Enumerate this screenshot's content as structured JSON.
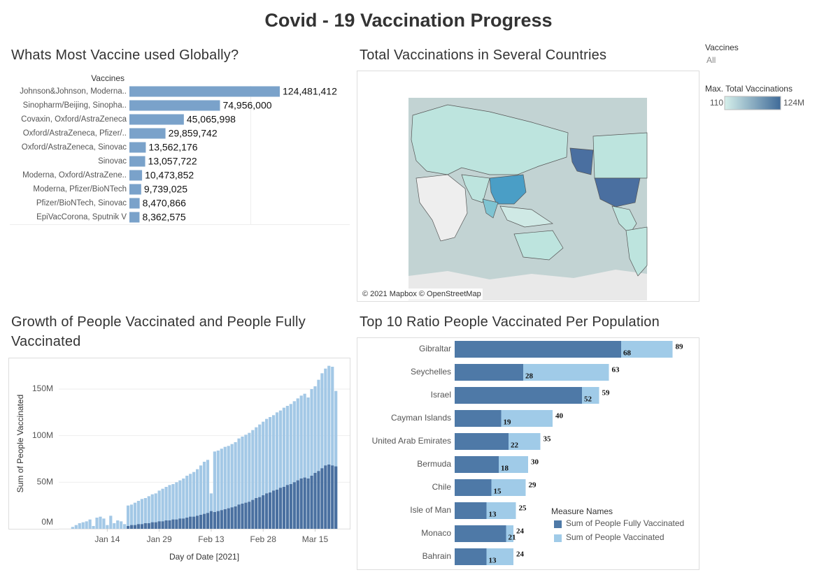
{
  "title": "Covid - 19 Vaccination Progress",
  "filter": {
    "label": "Vaccines",
    "value": "All"
  },
  "chart_data": [
    {
      "type": "barh",
      "title": "Whats Most Vaccine used Globally?",
      "axis_header": "Vaccines",
      "color": "#7aa2ca",
      "categories": [
        "Johnson&Johnson, Moderna..",
        "Sinopharm/Beijing, Sinopha..",
        "Covaxin, Oxford/AstraZeneca",
        "Oxford/AstraZeneca, Pfizer/..",
        "Oxford/AstraZeneca, Sinovac",
        "Sinovac",
        "Moderna, Oxford/AstraZene..",
        "Moderna, Pfizer/BioNTech",
        "Pfizer/BioNTech, Sinovac",
        "EpiVacCorona, Sputnik V"
      ],
      "values": [
        124481412,
        74956000,
        45065998,
        29859742,
        13562176,
        13057722,
        10473852,
        9739025,
        8470866,
        8362575
      ],
      "value_labels": [
        "124,481,412",
        "74,956,000",
        "45,065,998",
        "29,859,742",
        "13,562,176",
        "13,057,722",
        "10,473,852",
        "9,739,025",
        "8,470,866",
        "8,362,575"
      ]
    },
    {
      "type": "map",
      "title": "Total Vaccinations in Several Countries",
      "attribution": "© 2021 Mapbox © OpenStreetMap",
      "legend": {
        "title": "Max. Total Vaccinations",
        "min": 110,
        "max": {
          "value": 124000000,
          "label": "124M"
        },
        "colors": [
          "#d6f0eb",
          "#3f6a98"
        ]
      }
    },
    {
      "type": "bar",
      "title": "Growth of People Vaccinated and People Fully Vaccinated",
      "ylabel": "Sum of People Vaccinated",
      "xlabel": "Day of Date [2021]",
      "x": [
        "2021-01-04",
        "2021-01-05",
        "2021-01-06",
        "2021-01-07",
        "2021-01-08",
        "2021-01-09",
        "2021-01-10",
        "2021-01-11",
        "2021-01-12",
        "2021-01-13",
        "2021-01-14",
        "2021-01-15",
        "2021-01-16",
        "2021-01-17",
        "2021-01-18",
        "2021-01-19",
        "2021-01-20",
        "2021-01-21",
        "2021-01-22",
        "2021-01-23",
        "2021-01-24",
        "2021-01-25",
        "2021-01-26",
        "2021-01-27",
        "2021-01-28",
        "2021-01-29",
        "2021-01-30",
        "2021-01-31",
        "2021-02-01",
        "2021-02-02",
        "2021-02-03",
        "2021-02-04",
        "2021-02-05",
        "2021-02-06",
        "2021-02-07",
        "2021-02-08",
        "2021-02-09",
        "2021-02-10",
        "2021-02-11",
        "2021-02-12",
        "2021-02-13",
        "2021-02-14",
        "2021-02-15",
        "2021-02-16",
        "2021-02-17",
        "2021-02-18",
        "2021-02-19",
        "2021-02-20",
        "2021-02-21",
        "2021-02-22",
        "2021-02-23",
        "2021-02-24",
        "2021-02-25",
        "2021-02-26",
        "2021-02-27",
        "2021-02-28",
        "2021-03-01",
        "2021-03-02",
        "2021-03-03",
        "2021-03-04",
        "2021-03-05",
        "2021-03-06",
        "2021-03-07",
        "2021-03-08",
        "2021-03-09",
        "2021-03-10",
        "2021-03-11",
        "2021-03-12",
        "2021-03-13",
        "2021-03-14",
        "2021-03-15",
        "2021-03-16",
        "2021-03-17",
        "2021-03-18",
        "2021-03-19",
        "2021-03-20",
        "2021-03-21"
      ],
      "xlim": [
        "2021-01-01",
        "2021-03-25"
      ],
      "xticks": [
        {
          "value": "2021-01-14",
          "label": "Jan 14"
        },
        {
          "value": "2021-01-29",
          "label": "Jan 29"
        },
        {
          "value": "2021-02-13",
          "label": "Feb 13"
        },
        {
          "value": "2021-02-28",
          "label": "Feb 28"
        },
        {
          "value": "2021-03-15",
          "label": "Mar 15"
        }
      ],
      "ylim": [
        0,
        183000000
      ],
      "yticks": [
        {
          "value": 0,
          "label": "0M"
        },
        {
          "value": 50000000,
          "label": "50M"
        },
        {
          "value": 100000000,
          "label": "100M"
        },
        {
          "value": 150000000,
          "label": "150M"
        }
      ],
      "grid": true,
      "series": [
        {
          "color": "#a3c8e6",
          "values": [
            2000000,
            4000000,
            6000000,
            7000000,
            8000000,
            10000000,
            3000000,
            12000000,
            13000000,
            11000000,
            4000000,
            14000000,
            6000000,
            9000000,
            8000000,
            5000000,
            25000000,
            26000000,
            28000000,
            30000000,
            32000000,
            33000000,
            35000000,
            37000000,
            38000000,
            41000000,
            43000000,
            45000000,
            47000000,
            48000000,
            50000000,
            52000000,
            54000000,
            57000000,
            59000000,
            61000000,
            64000000,
            68000000,
            72000000,
            74000000,
            38000000,
            83000000,
            84000000,
            86000000,
            88000000,
            89000000,
            91000000,
            93000000,
            97000000,
            99000000,
            101000000,
            103000000,
            106000000,
            109000000,
            112000000,
            115000000,
            118000000,
            120000000,
            122000000,
            125000000,
            127000000,
            130000000,
            132000000,
            134000000,
            137000000,
            140000000,
            143000000,
            145000000,
            141000000,
            150000000,
            153000000,
            160000000,
            167000000,
            172000000,
            175000000,
            174000000,
            148000000
          ]
        },
        {
          "color": "#4a70a0",
          "values": [
            0,
            0,
            0,
            0,
            0,
            0,
            0,
            0,
            0,
            0,
            0,
            0,
            0,
            0,
            0,
            0,
            3000000,
            4000000,
            4000000,
            5000000,
            5000000,
            6000000,
            6000000,
            7000000,
            7000000,
            8000000,
            8000000,
            9000000,
            9000000,
            10000000,
            10000000,
            11000000,
            11000000,
            12000000,
            13000000,
            13000000,
            14000000,
            15000000,
            16000000,
            17000000,
            19000000,
            18000000,
            19000000,
            20000000,
            21000000,
            22000000,
            23000000,
            24000000,
            26000000,
            27000000,
            28000000,
            29000000,
            31000000,
            33000000,
            34000000,
            36000000,
            38000000,
            39000000,
            41000000,
            42000000,
            44000000,
            45000000,
            47000000,
            48000000,
            50000000,
            52000000,
            54000000,
            55000000,
            54000000,
            57000000,
            60000000,
            62000000,
            65000000,
            68000000,
            69000000,
            68000000,
            67000000
          ]
        }
      ]
    },
    {
      "type": "barh",
      "title": "Top 10 Ratio People Vaccinated Per Population",
      "categories": [
        "Gibraltar",
        "Seychelles",
        "Israel",
        "Cayman Islands",
        "United Arab Emirates",
        "Bermuda",
        "Chile",
        "Isle of Man",
        "Monaco",
        "Bahrain"
      ],
      "xlim": [
        0,
        100
      ],
      "legend": {
        "title": "Measure Names",
        "position": "lower right"
      },
      "series": [
        {
          "name": "Sum of People Fully Vaccinated",
          "color": "#4e79a7",
          "values": [
            68,
            28,
            52,
            19,
            22,
            18,
            15,
            13,
            21,
            13
          ]
        },
        {
          "name": "Sum of People Vaccinated",
          "color": "#a0cbe8",
          "values": [
            89,
            63,
            59,
            40,
            35,
            30,
            29,
            25,
            24,
            24
          ]
        }
      ]
    }
  ]
}
